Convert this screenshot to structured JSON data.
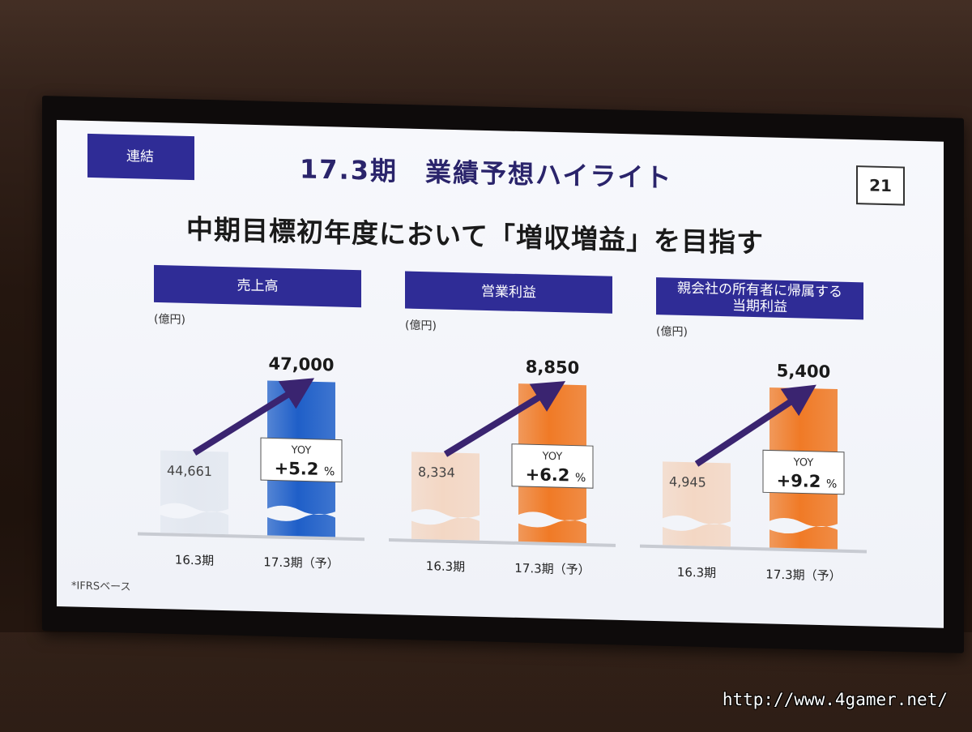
{
  "slide": {
    "tag": "連結",
    "title": "17.3期　業績予想ハイライト",
    "page_number": "21",
    "headline": "中期目標初年度において「増収増益」を目指す",
    "footnote": "*IFRSベース"
  },
  "watermark": "http://www.4gamer.net/",
  "colors": {
    "header_bg": "#2f2c96",
    "arrow": "#3a2470",
    "prev_bar_revenue": "#e3e8f0",
    "forecast_bar_revenue": "#1f5fc8",
    "prev_bar_profit": "#f3d7c4",
    "forecast_bar_profit": "#f07a26"
  },
  "chart_data": [
    {
      "type": "bar",
      "title": "売上高",
      "unit": "(億円)",
      "categories": [
        "16.3期",
        "17.3期（予）"
      ],
      "values": [
        44661,
        47000
      ],
      "value_labels": [
        "44,661",
        "47,000"
      ],
      "yoy_label": "YOY",
      "yoy_value": "+5.2",
      "yoy_unit": "%",
      "axis_break": true,
      "ylim": [
        42000,
        47500
      ]
    },
    {
      "type": "bar",
      "title": "営業利益",
      "unit": "(億円)",
      "categories": [
        "16.3期",
        "17.3期（予）"
      ],
      "values": [
        8334,
        8850
      ],
      "value_labels": [
        "8,334",
        "8,850"
      ],
      "yoy_label": "YOY",
      "yoy_value": "+6.2",
      "yoy_unit": "%",
      "axis_break": true,
      "ylim": [
        7700,
        8940
      ]
    },
    {
      "type": "bar",
      "title": "親会社の所有者に帰属する当期利益",
      "title_lines": [
        "親会社の所有者に帰属する",
        "当期利益"
      ],
      "unit": "(億円)",
      "categories": [
        "16.3期",
        "17.3期（予）"
      ],
      "values": [
        4945,
        5400
      ],
      "value_labels": [
        "4,945",
        "5,400"
      ],
      "yoy_label": "YOY",
      "yoy_value": "+9.2",
      "yoy_unit": "%",
      "axis_break": true,
      "ylim": [
        4450,
        5460
      ]
    }
  ]
}
